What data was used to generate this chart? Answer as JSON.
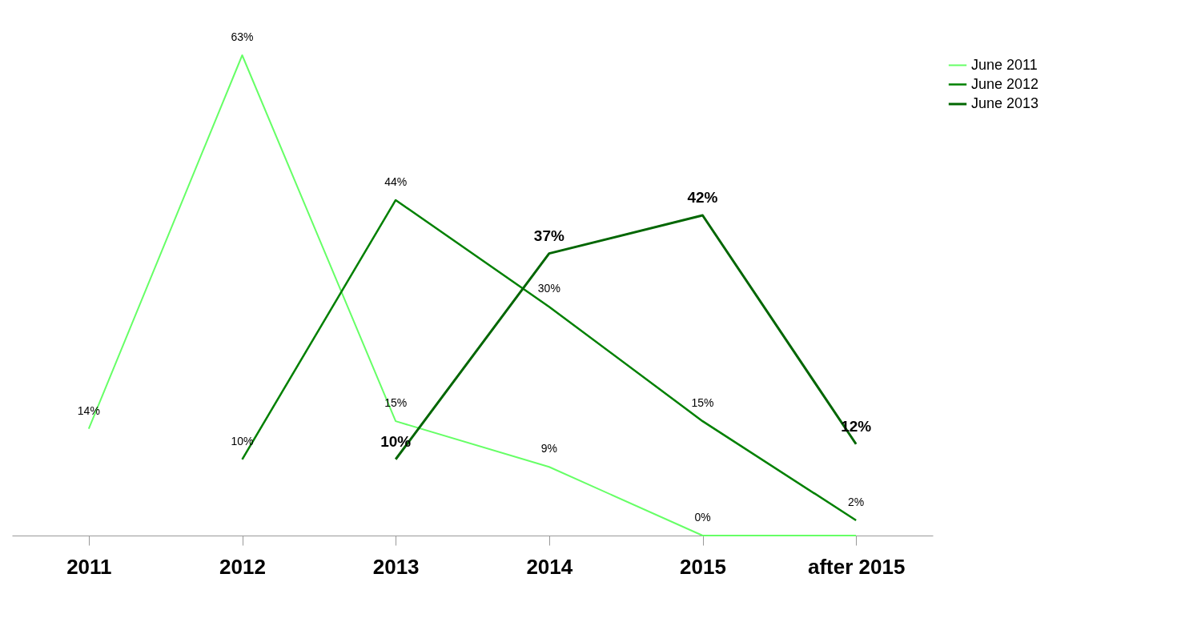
{
  "chart_data": {
    "type": "line",
    "categories": [
      "2011",
      "2012",
      "2013",
      "2014",
      "2015",
      "after 2015"
    ],
    "series": [
      {
        "name": "June 2011",
        "color": "#66ff66",
        "values": [
          14,
          63,
          15,
          9,
          0,
          0
        ],
        "value_labels": [
          "14%",
          "63%",
          "15%",
          "9%",
          "0%",
          null
        ]
      },
      {
        "name": "June 2012",
        "color": "#008000",
        "values": [
          null,
          10,
          44,
          30,
          15,
          2
        ],
        "value_labels": [
          null,
          "10%",
          "44%",
          "30%",
          "15%",
          "2%"
        ]
      },
      {
        "name": "June 2013",
        "color": "#006600",
        "values": [
          null,
          null,
          10,
          37,
          42,
          12
        ],
        "value_labels": [
          null,
          null,
          "10%",
          "37%",
          "42%",
          "12%"
        ]
      }
    ],
    "legend": "right",
    "grid": false,
    "marker": "none"
  }
}
